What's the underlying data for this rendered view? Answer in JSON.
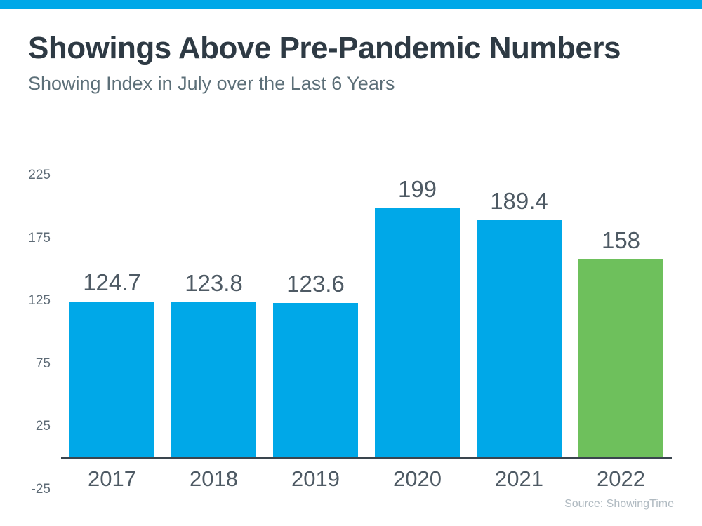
{
  "page": {
    "topbar_color": "#00A8E8",
    "background": "#FFFFFF"
  },
  "header": {
    "title": "Showings Above Pre-Pandemic Numbers",
    "subtitle": "Showing Index in July over the Last 6 Years"
  },
  "footer": {
    "source": "Source: ShowingTime"
  },
  "chart_data": {
    "type": "bar",
    "title": "Showings Above Pre-Pandemic Numbers",
    "subtitle": "Showing Index in July over the Last 6 Years",
    "categories": [
      "2017",
      "2018",
      "2019",
      "2020",
      "2021",
      "2022"
    ],
    "values": [
      124.7,
      123.8,
      123.6,
      199,
      189.4,
      158
    ],
    "value_labels": [
      "124.7",
      "123.8",
      "123.6",
      "199",
      "189.4",
      "158"
    ],
    "bar_colors": [
      "#00A8E8",
      "#00A8E8",
      "#00A8E8",
      "#00A8E8",
      "#00A8E8",
      "#6EC05C"
    ],
    "yticks": [
      225,
      175,
      125,
      75,
      25,
      -25
    ],
    "ylim": [
      -25,
      235
    ],
    "baseline_value": 0,
    "grid": false,
    "legend": false,
    "xlabel": "",
    "ylabel": "",
    "source": "Source: ShowingTime",
    "colors": {
      "bar_blue": "#00A8E8",
      "bar_green": "#6EC05C",
      "axis_line": "#3A454E",
      "title_text": "#2E3A44",
      "subtitle_text": "#5C6F78",
      "label_text": "#4E5A64",
      "tick_text": "#5E6B76",
      "source_text": "#B0BAC1"
    }
  }
}
